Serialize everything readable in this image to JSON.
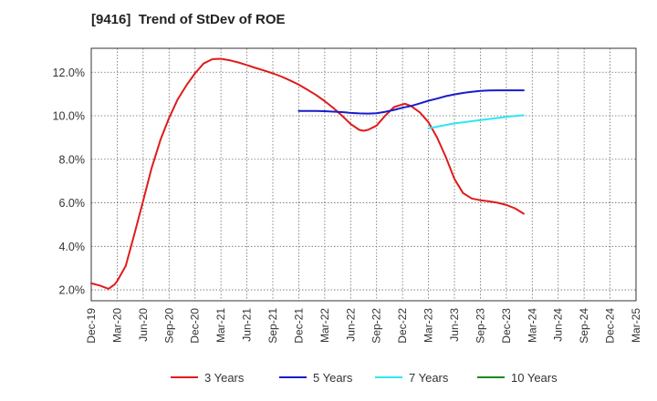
{
  "chart_data": {
    "type": "line",
    "title": "[9416]  Trend of StDev of ROE",
    "x_labels": [
      "Dec-19",
      "Mar-20",
      "Jun-20",
      "Sep-20",
      "Dec-20",
      "Mar-21",
      "Jun-21",
      "Sep-21",
      "Dec-21",
      "Mar-22",
      "Jun-22",
      "Sep-22",
      "Dec-22",
      "Mar-23",
      "Jun-23",
      "Sep-23",
      "Dec-23",
      "Mar-24",
      "Jun-24",
      "Sep-24",
      "Dec-24",
      "Mar-25"
    ],
    "y_ticks": [
      "2.0%",
      "4.0%",
      "6.0%",
      "8.0%",
      "10.0%",
      "12.0%"
    ],
    "y_tick_values": [
      2,
      4,
      6,
      8,
      10,
      12
    ],
    "ylim": [
      1.5,
      13.1
    ],
    "grid": true,
    "legend_position": "bottom",
    "series": [
      {
        "name": "3 Years",
        "color": "#e01b1b",
        "points": [
          [
            0,
            2.3
          ],
          [
            0.33,
            2.2
          ],
          [
            0.67,
            2.05
          ],
          [
            0.9,
            2.25
          ],
          [
            1.0,
            2.4
          ],
          [
            1.33,
            3.1
          ],
          [
            1.67,
            4.6
          ],
          [
            2.0,
            6.1
          ],
          [
            2.33,
            7.6
          ],
          [
            2.67,
            8.9
          ],
          [
            3.0,
            9.9
          ],
          [
            3.33,
            10.75
          ],
          [
            3.67,
            11.4
          ],
          [
            4.0,
            11.95
          ],
          [
            4.33,
            12.4
          ],
          [
            4.67,
            12.6
          ],
          [
            5.0,
            12.62
          ],
          [
            5.33,
            12.55
          ],
          [
            5.67,
            12.45
          ],
          [
            6.0,
            12.33
          ],
          [
            6.33,
            12.2
          ],
          [
            6.67,
            12.08
          ],
          [
            7.0,
            11.95
          ],
          [
            7.33,
            11.8
          ],
          [
            7.67,
            11.62
          ],
          [
            8.0,
            11.43
          ],
          [
            8.33,
            11.2
          ],
          [
            8.67,
            10.95
          ],
          [
            9.0,
            10.67
          ],
          [
            9.33,
            10.36
          ],
          [
            9.67,
            10.0
          ],
          [
            10.0,
            9.62
          ],
          [
            10.33,
            9.35
          ],
          [
            10.5,
            9.31
          ],
          [
            10.67,
            9.35
          ],
          [
            11.0,
            9.55
          ],
          [
            11.33,
            10.0
          ],
          [
            11.67,
            10.4
          ],
          [
            12.0,
            10.52
          ],
          [
            12.1,
            10.55
          ],
          [
            12.33,
            10.45
          ],
          [
            12.67,
            10.15
          ],
          [
            13.0,
            9.7
          ],
          [
            13.33,
            9.0
          ],
          [
            13.67,
            8.1
          ],
          [
            14.0,
            7.1
          ],
          [
            14.33,
            6.45
          ],
          [
            14.67,
            6.2
          ],
          [
            15.0,
            6.12
          ],
          [
            15.33,
            6.07
          ],
          [
            15.67,
            6.0
          ],
          [
            16.0,
            5.9
          ],
          [
            16.33,
            5.75
          ],
          [
            16.67,
            5.5
          ]
        ]
      },
      {
        "name": "5 Years",
        "color": "#1a1acc",
        "points": [
          [
            8.0,
            10.22
          ],
          [
            8.33,
            10.22
          ],
          [
            8.67,
            10.22
          ],
          [
            9.0,
            10.21
          ],
          [
            9.33,
            10.19
          ],
          [
            9.67,
            10.17
          ],
          [
            10.0,
            10.13
          ],
          [
            10.33,
            10.11
          ],
          [
            10.67,
            10.1
          ],
          [
            11.0,
            10.12
          ],
          [
            11.33,
            10.18
          ],
          [
            11.67,
            10.27
          ],
          [
            12.0,
            10.37
          ],
          [
            12.33,
            10.45
          ],
          [
            12.67,
            10.57
          ],
          [
            13.0,
            10.69
          ],
          [
            13.33,
            10.79
          ],
          [
            13.67,
            10.9
          ],
          [
            14.0,
            10.98
          ],
          [
            14.33,
            11.05
          ],
          [
            14.67,
            11.1
          ],
          [
            15.0,
            11.14
          ],
          [
            15.33,
            11.16
          ],
          [
            15.67,
            11.17
          ],
          [
            16.0,
            11.17
          ],
          [
            16.33,
            11.17
          ],
          [
            16.67,
            11.17
          ]
        ]
      },
      {
        "name": "7 Years",
        "color": "#2fe6f0",
        "points": [
          [
            13.0,
            9.42
          ],
          [
            13.33,
            9.5
          ],
          [
            13.67,
            9.58
          ],
          [
            14.0,
            9.65
          ],
          [
            14.33,
            9.7
          ],
          [
            14.67,
            9.75
          ],
          [
            15.0,
            9.8
          ],
          [
            15.33,
            9.85
          ],
          [
            15.67,
            9.9
          ],
          [
            16.0,
            9.95
          ],
          [
            16.33,
            9.99
          ],
          [
            16.67,
            10.02
          ]
        ]
      },
      {
        "name": "10 Years",
        "color": "#1a8a1a",
        "points": []
      }
    ]
  }
}
